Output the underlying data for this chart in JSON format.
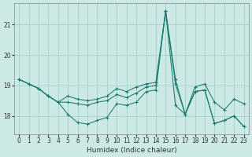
{
  "xlabel": "Humidex (Indice chaleur)",
  "bg_color": "#cce9e5",
  "grid_color": "#a8d5d0",
  "line_color": "#1a7a6e",
  "x_ticks": [
    0,
    1,
    2,
    3,
    4,
    5,
    6,
    7,
    8,
    9,
    10,
    11,
    12,
    13,
    14,
    15,
    16,
    17,
    18,
    19,
    20,
    21,
    22,
    23
  ],
  "y_ticks": [
    18,
    19,
    20,
    21
  ],
  "ylim": [
    17.4,
    21.7
  ],
  "xlim": [
    -0.5,
    23.5
  ],
  "series": [
    [
      19.2,
      19.05,
      18.9,
      18.65,
      18.45,
      18.05,
      17.78,
      17.73,
      17.85,
      17.95,
      18.4,
      18.35,
      18.45,
      18.8,
      18.85,
      21.45,
      19.2,
      18.05,
      18.8,
      18.85,
      17.75,
      17.85,
      18.0,
      17.65
    ],
    [
      19.2,
      19.05,
      18.9,
      18.65,
      18.45,
      18.45,
      18.4,
      18.35,
      18.45,
      18.5,
      18.7,
      18.6,
      18.75,
      18.95,
      19.0,
      21.45,
      18.35,
      18.05,
      18.8,
      18.85,
      17.75,
      17.85,
      18.0,
      17.65
    ],
    [
      19.2,
      19.05,
      18.9,
      18.65,
      18.45,
      18.65,
      18.55,
      18.5,
      18.55,
      18.65,
      18.9,
      18.8,
      18.95,
      19.05,
      19.1,
      21.45,
      19.05,
      18.05,
      18.95,
      19.05,
      18.45,
      18.2,
      18.55,
      18.4
    ]
  ]
}
